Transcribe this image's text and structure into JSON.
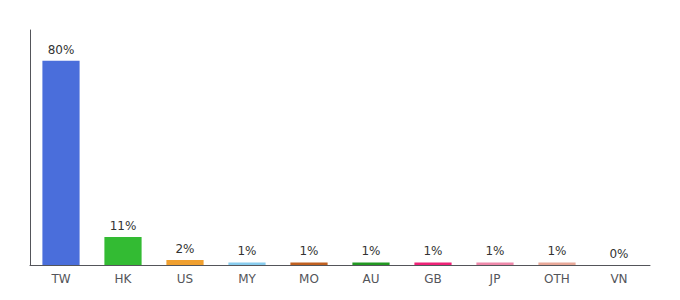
{
  "chart_data": {
    "type": "bar",
    "categories": [
      "TW",
      "HK",
      "US",
      "MY",
      "MO",
      "AU",
      "GB",
      "JP",
      "OTH",
      "VN"
    ],
    "values": [
      80,
      11,
      2,
      1,
      1,
      1,
      1,
      1,
      1,
      0
    ],
    "value_labels": [
      "80%",
      "11%",
      "2%",
      "1%",
      "1%",
      "1%",
      "1%",
      "1%",
      "1%",
      "0%"
    ],
    "colors": [
      "#4a6edb",
      "#33bb33",
      "#f0a030",
      "#88ccee",
      "#c06020",
      "#229922",
      "#ee2277",
      "#ee88aa",
      "#e8a898",
      "#ffffff"
    ],
    "data_labels": true,
    "ylim": [
      0,
      92
    ],
    "grid": false,
    "tick_labels": "x"
  }
}
